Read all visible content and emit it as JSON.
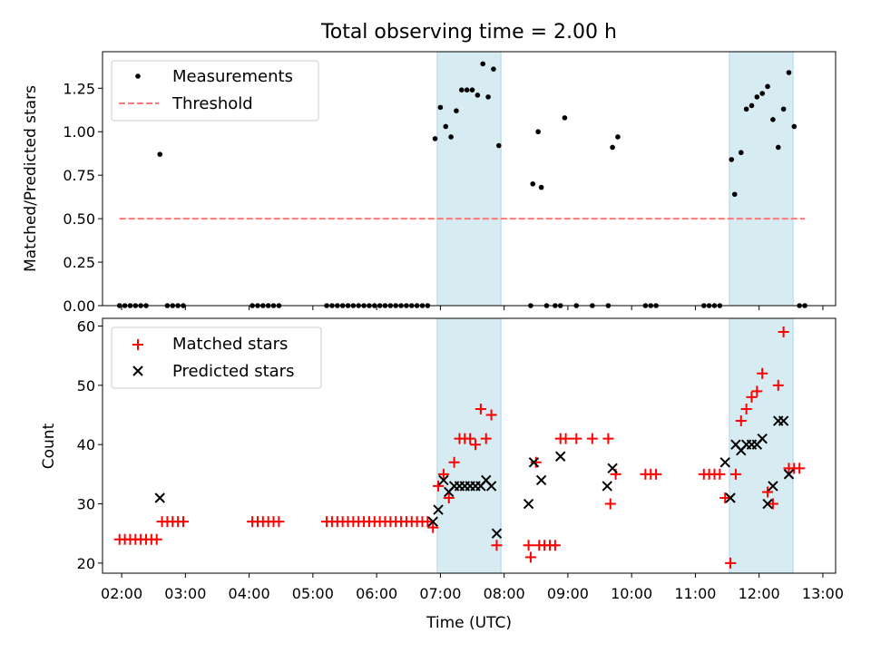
{
  "chart_data": [
    {
      "type": "scatter",
      "title": "Total observing time = 2.00 h",
      "ylabel": "Matched/Predicted stars",
      "xlim": [
        "01:42",
        "13:12"
      ],
      "ylim": [
        0,
        1.46
      ],
      "yticks": [
        "0.00",
        "0.25",
        "0.50",
        "0.75",
        "1.00",
        "1.25"
      ],
      "grid": false,
      "legend_position": "top-left",
      "highlight_intervals": [
        [
          "06:57",
          "07:57"
        ],
        [
          "11:32",
          "12:32"
        ]
      ],
      "highlight_color": "#add8e6",
      "series": [
        {
          "name": "Measurements",
          "marker": "dot",
          "color": "#000000",
          "points": [
            [
              "01:58",
              0
            ],
            [
              "02:03",
              0
            ],
            [
              "02:08",
              0
            ],
            [
              "02:13",
              0
            ],
            [
              "02:18",
              0
            ],
            [
              "02:23",
              0
            ],
            [
              "02:36",
              0.87
            ],
            [
              "02:43",
              0
            ],
            [
              "02:48",
              0
            ],
            [
              "02:53",
              0
            ],
            [
              "02:58",
              0
            ],
            [
              "04:03",
              0
            ],
            [
              "04:08",
              0
            ],
            [
              "04:13",
              0
            ],
            [
              "04:18",
              0
            ],
            [
              "04:23",
              0
            ],
            [
              "04:28",
              0
            ],
            [
              "05:13",
              0
            ],
            [
              "05:18",
              0
            ],
            [
              "05:23",
              0
            ],
            [
              "05:28",
              0
            ],
            [
              "05:33",
              0
            ],
            [
              "05:38",
              0
            ],
            [
              "05:43",
              0
            ],
            [
              "05:48",
              0
            ],
            [
              "05:53",
              0
            ],
            [
              "05:58",
              0
            ],
            [
              "06:03",
              0
            ],
            [
              "06:08",
              0
            ],
            [
              "06:13",
              0
            ],
            [
              "06:18",
              0
            ],
            [
              "06:23",
              0
            ],
            [
              "06:28",
              0
            ],
            [
              "06:33",
              0
            ],
            [
              "06:38",
              0
            ],
            [
              "06:43",
              0
            ],
            [
              "06:48",
              0
            ],
            [
              "06:55",
              0.96
            ],
            [
              "07:00",
              1.14
            ],
            [
              "07:05",
              1.03
            ],
            [
              "07:10",
              0.97
            ],
            [
              "07:15",
              1.12
            ],
            [
              "07:20",
              1.24
            ],
            [
              "07:25",
              1.24
            ],
            [
              "07:30",
              1.24
            ],
            [
              "07:35",
              1.21
            ],
            [
              "07:40",
              1.39
            ],
            [
              "07:45",
              1.2
            ],
            [
              "07:50",
              1.36
            ],
            [
              "07:55",
              0.92
            ],
            [
              "08:25",
              0
            ],
            [
              "08:27",
              0.7
            ],
            [
              "08:32",
              1.0
            ],
            [
              "08:35",
              0.68
            ],
            [
              "08:40",
              0
            ],
            [
              "08:48",
              0
            ],
            [
              "08:53",
              0
            ],
            [
              "08:57",
              1.08
            ],
            [
              "09:08",
              0
            ],
            [
              "09:23",
              0
            ],
            [
              "09:38",
              0
            ],
            [
              "09:42",
              0.91
            ],
            [
              "09:47",
              0.97
            ],
            [
              "10:13",
              0
            ],
            [
              "10:18",
              0
            ],
            [
              "10:23",
              0
            ],
            [
              "11:08",
              0
            ],
            [
              "11:13",
              0
            ],
            [
              "11:18",
              0
            ],
            [
              "11:23",
              0
            ],
            [
              "11:34",
              0.84
            ],
            [
              "11:37",
              0.64
            ],
            [
              "11:43",
              0.88
            ],
            [
              "11:48",
              1.13
            ],
            [
              "11:53",
              1.15
            ],
            [
              "11:58",
              1.2
            ],
            [
              "12:03",
              1.22
            ],
            [
              "12:08",
              1.26
            ],
            [
              "12:13",
              1.07
            ],
            [
              "12:18",
              0.91
            ],
            [
              "12:23",
              1.13
            ],
            [
              "12:28",
              1.34
            ],
            [
              "12:33",
              1.03
            ],
            [
              "12:38",
              0
            ],
            [
              "12:43",
              0
            ]
          ]
        },
        {
          "name": "Threshold",
          "line": "dashed",
          "color": "#ff7777",
          "points": [
            [
              "01:58",
              0.5
            ],
            [
              "12:43",
              0.5
            ]
          ]
        }
      ]
    },
    {
      "type": "scatter",
      "xlabel": "Time (UTC)",
      "ylabel": "Count",
      "xlim": [
        "01:42",
        "13:12"
      ],
      "ylim": [
        18.3,
        61.3
      ],
      "xticks": [
        "02:00",
        "03:00",
        "04:00",
        "05:00",
        "06:00",
        "07:00",
        "08:00",
        "09:00",
        "10:00",
        "11:00",
        "12:00",
        "13:00"
      ],
      "yticks": [
        "20",
        "30",
        "40",
        "50",
        "60"
      ],
      "grid": false,
      "legend_position": "top-left",
      "highlight_intervals": [
        [
          "06:57",
          "07:57"
        ],
        [
          "11:32",
          "12:32"
        ]
      ],
      "highlight_color": "#add8e6",
      "series": [
        {
          "name": "Matched stars",
          "marker": "plus",
          "color": "#ff0000",
          "points": [
            [
              "01:58",
              24
            ],
            [
              "02:03",
              24
            ],
            [
              "02:08",
              24
            ],
            [
              "02:13",
              24
            ],
            [
              "02:18",
              24
            ],
            [
              "02:23",
              24
            ],
            [
              "02:28",
              24
            ],
            [
              "02:33",
              24
            ],
            [
              "02:38",
              27
            ],
            [
              "02:43",
              27
            ],
            [
              "02:48",
              27
            ],
            [
              "02:53",
              27
            ],
            [
              "02:58",
              27
            ],
            [
              "04:03",
              27
            ],
            [
              "04:08",
              27
            ],
            [
              "04:13",
              27
            ],
            [
              "04:18",
              27
            ],
            [
              "04:23",
              27
            ],
            [
              "04:28",
              27
            ],
            [
              "05:13",
              27
            ],
            [
              "05:18",
              27
            ],
            [
              "05:23",
              27
            ],
            [
              "05:28",
              27
            ],
            [
              "05:33",
              27
            ],
            [
              "05:38",
              27
            ],
            [
              "05:43",
              27
            ],
            [
              "05:48",
              27
            ],
            [
              "05:53",
              27
            ],
            [
              "05:58",
              27
            ],
            [
              "06:03",
              27
            ],
            [
              "06:08",
              27
            ],
            [
              "06:13",
              27
            ],
            [
              "06:18",
              27
            ],
            [
              "06:23",
              27
            ],
            [
              "06:28",
              27
            ],
            [
              "06:33",
              27
            ],
            [
              "06:38",
              27
            ],
            [
              "06:43",
              27
            ],
            [
              "06:48",
              27
            ],
            [
              "06:53",
              26
            ],
            [
              "06:58",
              33
            ],
            [
              "07:03",
              35
            ],
            [
              "07:08",
              31
            ],
            [
              "07:13",
              37
            ],
            [
              "07:18",
              41
            ],
            [
              "07:23",
              41
            ],
            [
              "07:28",
              41
            ],
            [
              "07:33",
              40
            ],
            [
              "07:38",
              46
            ],
            [
              "07:43",
              41
            ],
            [
              "07:48",
              45
            ],
            [
              "07:53",
              23
            ],
            [
              "08:23",
              23
            ],
            [
              "08:25",
              21
            ],
            [
              "08:30",
              37
            ],
            [
              "08:33",
              23
            ],
            [
              "08:38",
              23
            ],
            [
              "08:43",
              23
            ],
            [
              "08:48",
              23
            ],
            [
              "08:53",
              41
            ],
            [
              "08:58",
              41
            ],
            [
              "09:08",
              41
            ],
            [
              "09:23",
              41
            ],
            [
              "09:38",
              41
            ],
            [
              "09:40",
              30
            ],
            [
              "09:45",
              35
            ],
            [
              "10:13",
              35
            ],
            [
              "10:18",
              35
            ],
            [
              "10:23",
              35
            ],
            [
              "11:08",
              35
            ],
            [
              "11:13",
              35
            ],
            [
              "11:18",
              35
            ],
            [
              "11:23",
              35
            ],
            [
              "11:28",
              31
            ],
            [
              "11:33",
              20
            ],
            [
              "11:38",
              35
            ],
            [
              "11:43",
              44
            ],
            [
              "11:48",
              46
            ],
            [
              "11:53",
              48
            ],
            [
              "11:58",
              49
            ],
            [
              "12:03",
              52
            ],
            [
              "12:08",
              32
            ],
            [
              "12:13",
              30
            ],
            [
              "12:18",
              50
            ],
            [
              "12:23",
              59
            ],
            [
              "12:28",
              36
            ],
            [
              "12:33",
              36
            ],
            [
              "12:38",
              36
            ]
          ]
        },
        {
          "name": "Predicted stars",
          "marker": "x",
          "color": "#000000",
          "points": [
            [
              "02:36",
              31
            ],
            [
              "06:53",
              27
            ],
            [
              "06:58",
              29
            ],
            [
              "07:03",
              34
            ],
            [
              "07:08",
              32
            ],
            [
              "07:13",
              33
            ],
            [
              "07:18",
              33
            ],
            [
              "07:23",
              33
            ],
            [
              "07:28",
              33
            ],
            [
              "07:33",
              33
            ],
            [
              "07:38",
              33
            ],
            [
              "07:43",
              34
            ],
            [
              "07:48",
              33
            ],
            [
              "07:53",
              25
            ],
            [
              "08:23",
              30
            ],
            [
              "08:28",
              37
            ],
            [
              "08:35",
              34
            ],
            [
              "08:53",
              38
            ],
            [
              "09:37",
              33
            ],
            [
              "09:42",
              36
            ],
            [
              "11:28",
              37
            ],
            [
              "11:33",
              31
            ],
            [
              "11:38",
              40
            ],
            [
              "11:43",
              39
            ],
            [
              "11:48",
              40
            ],
            [
              "11:53",
              40
            ],
            [
              "11:58",
              40
            ],
            [
              "12:03",
              41
            ],
            [
              "12:08",
              30
            ],
            [
              "12:13",
              33
            ],
            [
              "12:18",
              44
            ],
            [
              "12:23",
              44
            ],
            [
              "12:28",
              35
            ]
          ]
        }
      ]
    }
  ]
}
